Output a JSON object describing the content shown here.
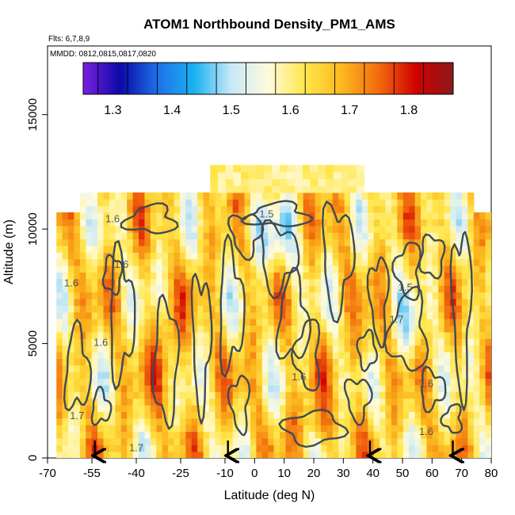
{
  "chart_data": {
    "type": "heatmap",
    "title": "ATOM1 Northbound Density_PM1_AMS",
    "subtitle_flights": "Flts: 6,7,8,9",
    "subtitle_dates": "MMDD: 0812,0815,0817,0820",
    "xlabel": "Latitude (deg N)",
    "ylabel": "Altitude (m)",
    "xlim": [
      -70,
      80
    ],
    "ylim": [
      0,
      18000
    ],
    "x_ticks": [
      "-70",
      "-55",
      "-40",
      "-25",
      "-10",
      "0",
      "10",
      "20",
      "30",
      "40",
      "50",
      "60",
      "70",
      "80"
    ],
    "x_tick_values": [
      -70,
      -55,
      -40,
      -25,
      -10,
      0,
      10,
      20,
      30,
      40,
      50,
      60,
      70,
      80
    ],
    "y_ticks": [
      "0",
      "5000",
      "10000",
      "15000"
    ],
    "y_tick_values": [
      0,
      5000,
      10000,
      15000
    ],
    "colorbar": {
      "min": 1.25,
      "max": 1.875,
      "tick_labels": [
        "1.3",
        "1.4",
        "1.5",
        "1.6",
        "1.7",
        "1.8"
      ],
      "tick_values": [
        1.3,
        1.4,
        1.5,
        1.6,
        1.7,
        1.8
      ],
      "colors": [
        "#7b1fe0",
        "#0a0aa8",
        "#1f6fe8",
        "#1ab2f0",
        "#c8e8f6",
        "#fffbdc",
        "#ffe64a",
        "#fbb81e",
        "#f26a0e",
        "#d00000",
        "#8a1a1a"
      ]
    },
    "contour_labels": [
      "1.6",
      "1.6",
      "1.6",
      "1.6",
      "1.6",
      "1.5",
      "1.5",
      "1.7",
      "1.7",
      "1.7",
      "1.6",
      "1.6"
    ],
    "arrow_latitudes": [
      -54,
      -9,
      39,
      67
    ],
    "grid": false
  }
}
